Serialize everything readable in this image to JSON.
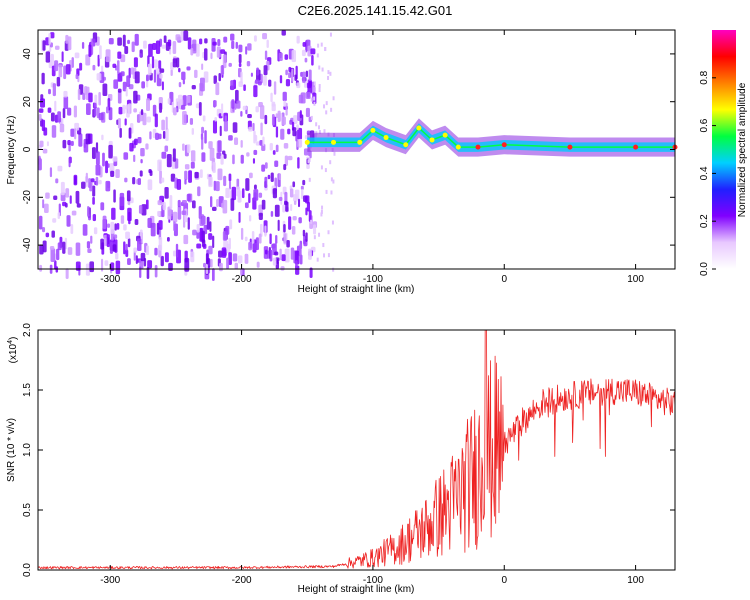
{
  "title": "C2E6.2025.141.15.42.G01",
  "chart_data": [
    {
      "type": "heatmap",
      "xlabel": "Height of straight line (km)",
      "ylabel": "Frequency (Hz)",
      "xlim": [
        -355,
        130
      ],
      "ylim": [
        -50,
        50
      ],
      "x_ticks": [
        -300,
        -200,
        -100,
        0,
        100
      ],
      "y_ticks": [
        -40,
        -20,
        0,
        20,
        40
      ],
      "colorbar_label": "Normalized spectral amplitude",
      "colorbar_range": [
        0,
        1
      ],
      "colorbar_ticks": [
        0.0,
        0.2,
        0.4,
        0.6,
        0.8
      ],
      "colormap": [
        "#ffffff",
        "#e8c8ff",
        "#8000ff",
        "#2020ff",
        "#00d0ff",
        "#00ff40",
        "#ffff00",
        "#ff8000",
        "#ff0000",
        "#ff00c0"
      ],
      "ridge": [
        {
          "x": -150,
          "y": 3
        },
        {
          "x": -130,
          "y": 3
        },
        {
          "x": -110,
          "y": 3
        },
        {
          "x": -100,
          "y": 8
        },
        {
          "x": -90,
          "y": 5
        },
        {
          "x": -75,
          "y": 2
        },
        {
          "x": -65,
          "y": 9
        },
        {
          "x": -55,
          "y": 4
        },
        {
          "x": -45,
          "y": 6
        },
        {
          "x": -35,
          "y": 1
        },
        {
          "x": -20,
          "y": 1
        },
        {
          "x": 0,
          "y": 2
        },
        {
          "x": 50,
          "y": 1
        },
        {
          "x": 100,
          "y": 1
        },
        {
          "x": 130,
          "y": 1
        }
      ]
    },
    {
      "type": "line",
      "xlabel": "Height of straight line (km)",
      "ylabel": "SNR (10 * v/v)",
      "y_multiplier": "(x10",
      "y_multiplier_exp": "4",
      "y_multiplier_close": ")",
      "xlim": [
        -355,
        130
      ],
      "ylim": [
        0,
        2.0
      ],
      "x_ticks": [
        -300,
        -200,
        -100,
        0,
        100
      ],
      "y_ticks": [
        0.0,
        0.5,
        1.0,
        1.5,
        2.0
      ],
      "color": "#ee2222",
      "envelope": [
        {
          "x": -355,
          "y": 0.02
        },
        {
          "x": -200,
          "y": 0.02
        },
        {
          "x": -130,
          "y": 0.03
        },
        {
          "x": -100,
          "y": 0.1
        },
        {
          "x": -80,
          "y": 0.2
        },
        {
          "x": -60,
          "y": 0.35
        },
        {
          "x": -40,
          "y": 0.55
        },
        {
          "x": -25,
          "y": 0.75
        },
        {
          "x": -15,
          "y": 0.95
        },
        {
          "x": 0,
          "y": 1.05
        },
        {
          "x": 15,
          "y": 1.25
        },
        {
          "x": 30,
          "y": 1.4
        },
        {
          "x": 50,
          "y": 1.45
        },
        {
          "x": 80,
          "y": 1.5
        },
        {
          "x": 100,
          "y": 1.48
        },
        {
          "x": 130,
          "y": 1.38
        }
      ],
      "peak": {
        "x": -14,
        "y": 2.05
      }
    }
  ]
}
